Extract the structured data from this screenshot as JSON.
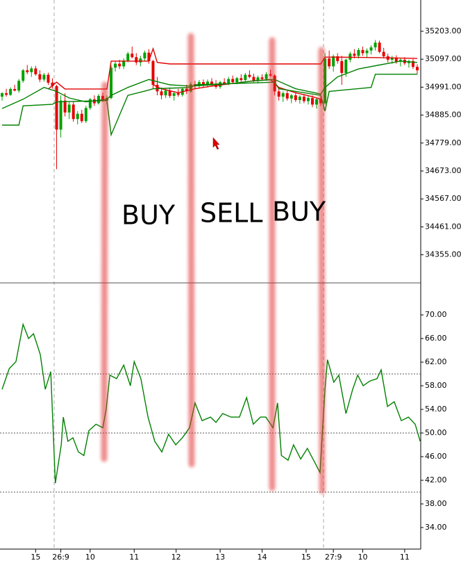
{
  "chart_data": [
    {
      "type": "candlestick",
      "xlim": [
        -0.5,
        99.5
      ],
      "ylim": [
        34248.4,
        35321.7
      ],
      "yticks": [
        {
          "value": 35203,
          "label": "35203.00"
        },
        {
          "value": 35097,
          "label": "35097.00"
        },
        {
          "value": 34991,
          "label": "34991.00"
        },
        {
          "value": 34885,
          "label": "34885.00"
        },
        {
          "value": 34779,
          "label": "34779.00"
        },
        {
          "value": 34673,
          "label": "34673.00"
        },
        {
          "value": 34567,
          "label": "34567.00"
        },
        {
          "value": 34461,
          "label": "34461.00"
        },
        {
          "value": 34355,
          "label": "34355.00"
        }
      ],
      "up_color": "#00a000",
      "down_color": "#e60000",
      "ohlc": [
        [
          34955,
          34972,
          34940,
          34968
        ],
        [
          34968,
          34985,
          34955,
          34962
        ],
        [
          34962,
          34990,
          34958,
          34984
        ],
        [
          34984,
          35000,
          34975,
          34978
        ],
        [
          34978,
          35022,
          34970,
          35015
        ],
        [
          35015,
          35060,
          35008,
          35055
        ],
        [
          35055,
          35075,
          35040,
          35048
        ],
        [
          35048,
          35070,
          35030,
          35062
        ],
        [
          35062,
          35072,
          35035,
          35040
        ],
        [
          35040,
          35055,
          35010,
          35020
        ],
        [
          35020,
          35045,
          35012,
          35038
        ],
        [
          35038,
          35046,
          35000,
          35008
        ],
        [
          35008,
          35025,
          34985,
          34995
        ],
        [
          34995,
          35000,
          34680,
          34830
        ],
        [
          34830,
          34960,
          34800,
          34940
        ],
        [
          34940,
          34968,
          34880,
          34895
        ],
        [
          34895,
          34935,
          34870,
          34925
        ],
        [
          34925,
          34935,
          34860,
          34870
        ],
        [
          34870,
          34900,
          34850,
          34890
        ],
        [
          34890,
          34905,
          34855,
          34862
        ],
        [
          34862,
          34920,
          34855,
          34912
        ],
        [
          34912,
          34950,
          34905,
          34945
        ],
        [
          34945,
          34960,
          34920,
          34930
        ],
        [
          34930,
          34965,
          34925,
          34958
        ],
        [
          34958,
          34970,
          34935,
          34940
        ],
        [
          34940,
          34960,
          34925,
          34950
        ],
        [
          34950,
          35075,
          34945,
          35065
        ],
        [
          35065,
          35090,
          35050,
          35080
        ],
        [
          35080,
          35095,
          35060,
          35070
        ],
        [
          35070,
          35100,
          35060,
          35092
        ],
        [
          35092,
          35125,
          35085,
          35118
        ],
        [
          35118,
          35145,
          35100,
          35105
        ],
        [
          35105,
          35120,
          35075,
          35085
        ],
        [
          35085,
          35110,
          35070,
          35100
        ],
        [
          35100,
          35130,
          35090,
          35122
        ],
        [
          35122,
          35135,
          35080,
          35090
        ],
        [
          35090,
          35095,
          34985,
          35000
        ],
        [
          35000,
          35030,
          34960,
          34975
        ],
        [
          34975,
          34990,
          34945,
          34960
        ],
        [
          34960,
          34985,
          34950,
          34978
        ],
        [
          34978,
          34990,
          34950,
          34958
        ],
        [
          34958,
          34975,
          34940,
          34968
        ],
        [
          34968,
          34985,
          34955,
          34962
        ],
        [
          34962,
          34990,
          34955,
          34985
        ],
        [
          34985,
          35000,
          34965,
          34975
        ],
        [
          34975,
          35010,
          34970,
          35002
        ],
        [
          35002,
          35015,
          34985,
          34995
        ],
        [
          34995,
          35018,
          34988,
          35010
        ],
        [
          35010,
          35020,
          34990,
          34998
        ],
        [
          34998,
          35020,
          34990,
          35012
        ],
        [
          35012,
          35025,
          34995,
          35000
        ],
        [
          35000,
          35018,
          34985,
          34992
        ],
        [
          34992,
          35015,
          34985,
          35010
        ],
        [
          35010,
          35025,
          35000,
          35005
        ],
        [
          35005,
          35030,
          34998,
          35022
        ],
        [
          35022,
          35035,
          35005,
          35010
        ],
        [
          35010,
          35030,
          35002,
          35025
        ],
        [
          35025,
          35040,
          35010,
          35018
        ],
        [
          35018,
          35045,
          35012,
          35038
        ],
        [
          35038,
          35055,
          35025,
          35030
        ],
        [
          35030,
          35042,
          35010,
          35015
        ],
        [
          35015,
          35035,
          35005,
          35028
        ],
        [
          35028,
          35040,
          35015,
          35022
        ],
        [
          35022,
          35048,
          35015,
          35040
        ],
        [
          35040,
          35058,
          35030,
          35035
        ],
        [
          35035,
          35040,
          34960,
          34975
        ],
        [
          34975,
          34990,
          34940,
          34955
        ],
        [
          34955,
          34975,
          34935,
          34968
        ],
        [
          34968,
          34980,
          34940,
          34948
        ],
        [
          34948,
          34965,
          34930,
          34960
        ],
        [
          34960,
          34972,
          34935,
          34942
        ],
        [
          34942,
          34960,
          34928,
          34955
        ],
        [
          34955,
          34965,
          34930,
          34938
        ],
        [
          34938,
          34958,
          34925,
          34950
        ],
        [
          34950,
          34960,
          34915,
          34925
        ],
        [
          34925,
          34950,
          34910,
          34945
        ],
        [
          34945,
          34960,
          34920,
          34930
        ],
        [
          34930,
          35120,
          34925,
          35100
        ],
        [
          35100,
          35130,
          35060,
          35070
        ],
        [
          35070,
          35115,
          35050,
          35108
        ],
        [
          35108,
          35120,
          35080,
          35090
        ],
        [
          35090,
          35110,
          35000,
          35045
        ],
        [
          35045,
          35100,
          35030,
          35095
        ],
        [
          35095,
          35125,
          35085,
          35118
        ],
        [
          35118,
          35135,
          35100,
          35110
        ],
        [
          35110,
          35140,
          35100,
          35132
        ],
        [
          35132,
          35145,
          35110,
          35120
        ],
        [
          35120,
          35138,
          35105,
          35130
        ],
        [
          35130,
          35150,
          35115,
          35142
        ],
        [
          35142,
          35170,
          35130,
          35160
        ],
        [
          35160,
          35168,
          35120,
          35125
        ],
        [
          35125,
          35140,
          35100,
          35108
        ],
        [
          35108,
          35118,
          35085,
          35095
        ],
        [
          35095,
          35110,
          35080,
          35102
        ],
        [
          35102,
          35112,
          35080,
          35088
        ],
        [
          35088,
          35100,
          35070,
          35095
        ],
        [
          35095,
          35105,
          35075,
          35082
        ],
        [
          35082,
          35095,
          35065,
          35090
        ],
        [
          35090,
          35098,
          35060,
          35068
        ],
        [
          35068,
          35078,
          35040,
          35055
        ]
      ],
      "series": [
        {
          "color": "#e00000",
          "x": [
            11,
            13,
            15,
            20,
            25,
            26,
            30,
            35,
            36,
            37,
            40,
            50,
            60,
            70,
            76,
            77,
            80,
            90,
            99
          ],
          "values": [
            34984,
            35010,
            34984,
            34984,
            34984,
            35090,
            35090,
            35090,
            35137,
            35085,
            35079,
            35079,
            35079,
            35079,
            35079,
            35105,
            35105,
            35103,
            35100
          ]
        },
        {
          "color": "#e00000",
          "x": [
            36,
            38,
            42,
            46,
            50,
            55,
            60,
            64,
            66,
            70,
            74,
            76
          ],
          "values": [
            35000,
            34985,
            34970,
            34985,
            34995,
            35005,
            35015,
            35020,
            34990,
            34970,
            34955,
            34945
          ]
        },
        {
          "color": "#008000",
          "x": [
            0,
            5,
            10,
            13,
            16,
            20,
            25,
            26,
            30,
            35,
            40,
            45,
            50,
            55,
            60,
            65,
            70,
            76,
            77,
            80,
            85,
            90,
            95,
            99
          ],
          "values": [
            34910,
            34945,
            34990,
            34975,
            34950,
            34935,
            34945,
            34960,
            34990,
            35020,
            35000,
            34995,
            35000,
            35005,
            35015,
            35020,
            34985,
            34965,
            34990,
            35030,
            35060,
            35075,
            35090,
            35085
          ]
        },
        {
          "color": "#008000",
          "x": [
            0,
            4,
            5,
            12,
            13,
            25,
            26,
            30,
            35,
            36,
            45,
            46,
            65,
            66,
            76,
            77,
            78,
            88,
            89,
            99
          ],
          "values": [
            34847,
            34847,
            34920,
            34926,
            34935,
            34940,
            34810,
            34960,
            34980,
            34985,
            34990,
            35000,
            35010,
            34985,
            34960,
            34900,
            34975,
            34990,
            35040,
            35040
          ]
        }
      ],
      "annotations": [
        {
          "text": "BUY",
          "color": "#3b2a10"
        },
        {
          "text": "SELL",
          "color": "#e01010"
        },
        {
          "text": "BUY",
          "color": "#6cd86c"
        }
      ]
    },
    {
      "type": "line",
      "xlim": [
        -0.5,
        99.5
      ],
      "ylim": [
        30.35,
        75.3
      ],
      "yticks": [
        {
          "value": 70,
          "label": "70.00"
        },
        {
          "value": 66,
          "label": "66.00"
        },
        {
          "value": 62,
          "label": "62.00"
        },
        {
          "value": 58,
          "label": "58.00"
        },
        {
          "value": 54,
          "label": "54.00"
        },
        {
          "value": 50,
          "label": "50.00"
        },
        {
          "value": 46,
          "label": "46.00"
        },
        {
          "value": 42,
          "label": "42.00"
        },
        {
          "value": 38,
          "label": "38.00"
        },
        {
          "value": 34,
          "label": "34.00"
        }
      ],
      "levels": [
        60,
        50,
        40
      ],
      "xticks": [
        {
          "value": 8,
          "label": "15"
        },
        {
          "value": 14,
          "label": "26:9"
        },
        {
          "value": 21,
          "label": "10"
        },
        {
          "value": 31.5,
          "label": "11"
        },
        {
          "value": 41.5,
          "label": "12"
        },
        {
          "value": 52,
          "label": "13"
        },
        {
          "value": 62,
          "label": "14"
        },
        {
          "value": 72.5,
          "label": "15"
        },
        {
          "value": 79,
          "label": "27:9"
        },
        {
          "value": 86,
          "label": "10"
        },
        {
          "value": 96,
          "label": "11"
        }
      ],
      "series": [
        {
          "color": "#008000",
          "x": [
            0,
            1.7,
            3.3,
            5,
            6.3,
            7.5,
            9.1,
            10.3,
            11.6,
            12.7,
            14.1,
            14.6,
            15.7,
            16.9,
            18.2,
            19.5,
            20.7,
            22.4,
            24,
            24.8,
            25.7,
            27.3,
            29,
            30.6,
            31.5,
            33.1,
            34.8,
            36.4,
            38.1,
            39.7,
            41.4,
            43,
            44.7,
            46,
            47.7,
            49.7,
            51,
            52.6,
            54.6,
            56.6,
            58.3,
            59.9,
            61.6,
            62.9,
            64.6,
            65.7,
            66.6,
            68.2,
            69.5,
            71.2,
            72.8,
            74.5,
            75.8,
            77,
            77.6,
            79.1,
            80.3,
            82,
            83.6,
            84.8,
            86.1,
            87.7,
            89.4,
            90.4,
            91.9,
            93.5,
            95.2,
            96.9,
            98.5,
            99.7
          ],
          "values": [
            57.4,
            60.9,
            62.1,
            68.4,
            66.0,
            66.8,
            63.3,
            57.4,
            60.4,
            41.5,
            48.0,
            52.7,
            48.6,
            49.2,
            46.8,
            46.2,
            50.4,
            51.5,
            50.9,
            53.9,
            59.8,
            59.2,
            61.5,
            58.0,
            62.1,
            59.2,
            52.7,
            48.6,
            46.8,
            49.8,
            48.0,
            49.2,
            50.9,
            55.1,
            52.1,
            52.7,
            51.8,
            53.3,
            52.7,
            52.7,
            56.0,
            51.5,
            52.7,
            52.7,
            50.9,
            55.1,
            46.2,
            45.4,
            48.0,
            45.6,
            47.4,
            45.1,
            43.3,
            57.4,
            62.4,
            58.6,
            59.8,
            53.3,
            57.4,
            59.8,
            58.0,
            58.8,
            59.2,
            60.7,
            54.5,
            55.3,
            52.1,
            52.7,
            51.5,
            48.6
          ]
        }
      ]
    }
  ]
}
